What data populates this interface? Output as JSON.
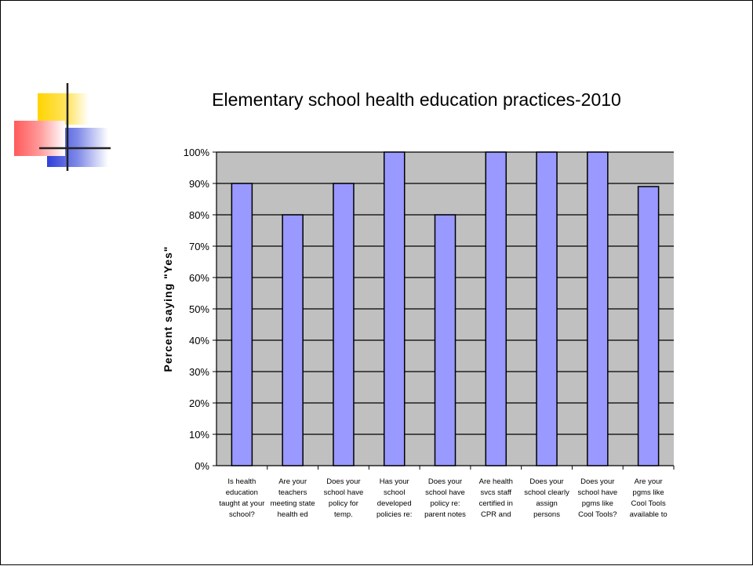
{
  "chart_data": {
    "type": "bar",
    "title": "Elementary school health education practices-2010",
    "ylabel": "Percent saying \"Yes\"",
    "xlabel": "",
    "ylim": [
      0,
      100
    ],
    "yticks": [
      "0%",
      "10%",
      "20%",
      "30%",
      "40%",
      "50%",
      "60%",
      "70%",
      "80%",
      "90%",
      "100%"
    ],
    "grid": true,
    "legend": "none",
    "categories": [
      [
        "Is health",
        "education",
        "taught at your",
        "school?"
      ],
      [
        "Are your",
        "teachers",
        "meeting state",
        "health ed"
      ],
      [
        "Does your",
        "school have",
        "policy for",
        "temp."
      ],
      [
        "Has your",
        "school",
        "developed",
        "policies re:"
      ],
      [
        "Does your",
        "school have",
        "policy re:",
        "parent notes"
      ],
      [
        "Are health",
        "svcs staff",
        "certified in",
        "CPR and"
      ],
      [
        "Does your",
        "school clearly",
        "assign",
        "persons"
      ],
      [
        "Does your",
        "school have",
        "pgms like",
        "Cool Tools?"
      ],
      [
        "Are your",
        "pgms like",
        "Cool Tools",
        "available to"
      ]
    ],
    "values": [
      90,
      80,
      90,
      100,
      80,
      100,
      100,
      100,
      89
    ],
    "colors": {
      "bar": "#9999ff",
      "plot_bg": "#c0c0c0"
    }
  }
}
